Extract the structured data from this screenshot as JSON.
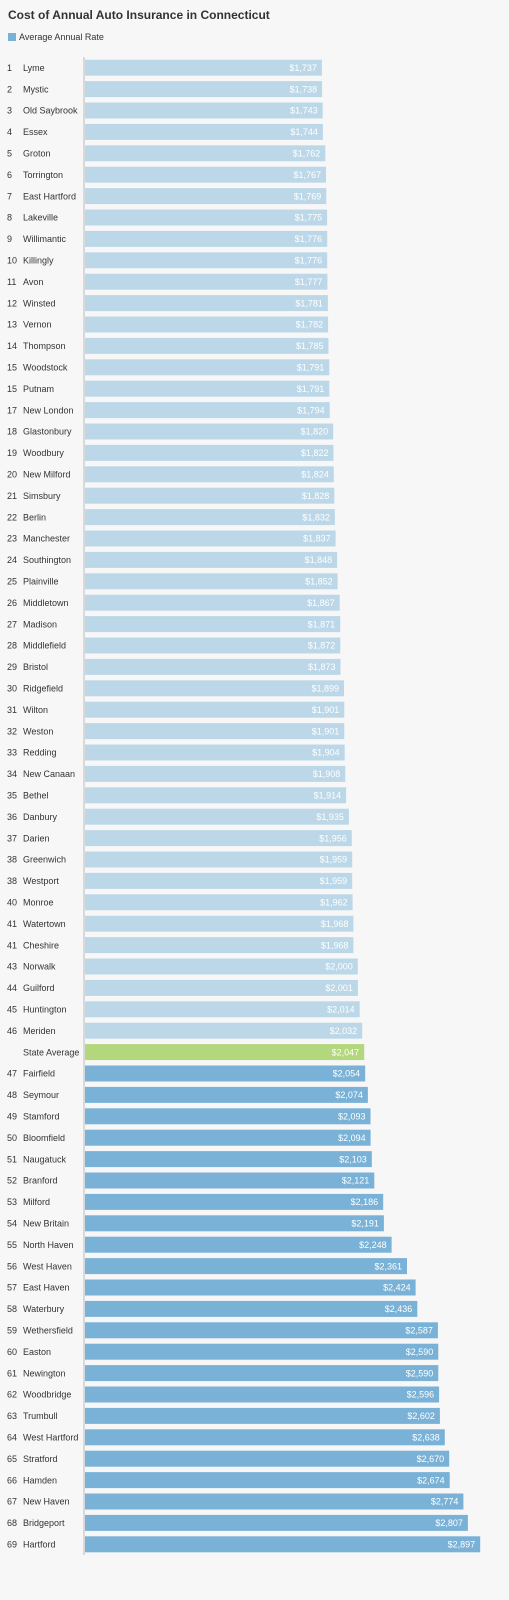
{
  "chart_data": {
    "type": "bar",
    "orientation": "horizontal",
    "title": "Cost of Annual Auto Insurance in Connecticut",
    "legend": {
      "label": "Average Annual Rate",
      "placement": "top-left"
    },
    "grid": false,
    "xlim": [
      0,
      2900
    ],
    "colors": {
      "default": "#79b2d6",
      "light": "#bcd8e8",
      "highlight": "#b2d77c",
      "label": "#ffffff"
    },
    "rows": [
      {
        "rank": "1",
        "name": "Lyme",
        "value": 1737,
        "label": "$1,737",
        "style": "light"
      },
      {
        "rank": "2",
        "name": "Mystic",
        "value": 1738,
        "label": "$1,738",
        "style": "light"
      },
      {
        "rank": "3",
        "name": "Old Saybrook",
        "value": 1743,
        "label": "$1,743",
        "style": "light"
      },
      {
        "rank": "4",
        "name": "Essex",
        "value": 1744,
        "label": "$1,744",
        "style": "light"
      },
      {
        "rank": "5",
        "name": "Groton",
        "value": 1762,
        "label": "$1,762",
        "style": "light"
      },
      {
        "rank": "6",
        "name": "Torrington",
        "value": 1767,
        "label": "$1,767",
        "style": "light"
      },
      {
        "rank": "7",
        "name": "East Hartford",
        "value": 1769,
        "label": "$1,769",
        "style": "light"
      },
      {
        "rank": "8",
        "name": "Lakeville",
        "value": 1775,
        "label": "$1,775",
        "style": "light"
      },
      {
        "rank": "9",
        "name": "Willimantic",
        "value": 1776,
        "label": "$1,776",
        "style": "light"
      },
      {
        "rank": "10",
        "name": "Killingly",
        "value": 1776,
        "label": "$1,776",
        "style": "light"
      },
      {
        "rank": "11",
        "name": "Avon",
        "value": 1777,
        "label": "$1,777",
        "style": "light"
      },
      {
        "rank": "12",
        "name": "Winsted",
        "value": 1781,
        "label": "$1,781",
        "style": "light"
      },
      {
        "rank": "13",
        "name": "Vernon",
        "value": 1782,
        "label": "$1,782",
        "style": "light"
      },
      {
        "rank": "14",
        "name": "Thompson",
        "value": 1785,
        "label": "$1,785",
        "style": "light"
      },
      {
        "rank": "15",
        "name": "Woodstock",
        "value": 1791,
        "label": "$1,791",
        "style": "light"
      },
      {
        "rank": "15",
        "name": "Putnam",
        "value": 1791,
        "label": "$1,791",
        "style": "light"
      },
      {
        "rank": "17",
        "name": "New London",
        "value": 1794,
        "label": "$1,794",
        "style": "light"
      },
      {
        "rank": "18",
        "name": "Glastonbury",
        "value": 1820,
        "label": "$1,820",
        "style": "light"
      },
      {
        "rank": "19",
        "name": "Woodbury",
        "value": 1822,
        "label": "$1,822",
        "style": "light"
      },
      {
        "rank": "20",
        "name": "New Milford",
        "value": 1824,
        "label": "$1,824",
        "style": "light"
      },
      {
        "rank": "21",
        "name": "Simsbury",
        "value": 1828,
        "label": "$1,828",
        "style": "light"
      },
      {
        "rank": "22",
        "name": "Berlin",
        "value": 1832,
        "label": "$1,832",
        "style": "light"
      },
      {
        "rank": "23",
        "name": "Manchester",
        "value": 1837,
        "label": "$1,837",
        "style": "light"
      },
      {
        "rank": "24",
        "name": "Southington",
        "value": 1848,
        "label": "$1,848",
        "style": "light"
      },
      {
        "rank": "25",
        "name": "Plainville",
        "value": 1852,
        "label": "$1,852",
        "style": "light"
      },
      {
        "rank": "26",
        "name": "Middletown",
        "value": 1867,
        "label": "$1,867",
        "style": "light"
      },
      {
        "rank": "27",
        "name": "Madison",
        "value": 1871,
        "label": "$1,871",
        "style": "light"
      },
      {
        "rank": "28",
        "name": "Middlefield",
        "value": 1872,
        "label": "$1,872",
        "style": "light"
      },
      {
        "rank": "29",
        "name": "Bristol",
        "value": 1873,
        "label": "$1,873",
        "style": "light"
      },
      {
        "rank": "30",
        "name": "Ridgefield",
        "value": 1899,
        "label": "$1,899",
        "style": "light"
      },
      {
        "rank": "31",
        "name": "Wilton",
        "value": 1901,
        "label": "$1,901",
        "style": "light"
      },
      {
        "rank": "32",
        "name": "Weston",
        "value": 1901,
        "label": "$1,901",
        "style": "light"
      },
      {
        "rank": "33",
        "name": "Redding",
        "value": 1904,
        "label": "$1,904",
        "style": "light"
      },
      {
        "rank": "34",
        "name": "New Canaan",
        "value": 1908,
        "label": "$1,908",
        "style": "light"
      },
      {
        "rank": "35",
        "name": "Bethel",
        "value": 1914,
        "label": "$1,914",
        "style": "light"
      },
      {
        "rank": "36",
        "name": "Danbury",
        "value": 1935,
        "label": "$1,935",
        "style": "light"
      },
      {
        "rank": "37",
        "name": "Darien",
        "value": 1956,
        "label": "$1,956",
        "style": "light"
      },
      {
        "rank": "38",
        "name": "Greenwich",
        "value": 1959,
        "label": "$1,959",
        "style": "light"
      },
      {
        "rank": "38",
        "name": "Westport",
        "value": 1959,
        "label": "$1,959",
        "style": "light"
      },
      {
        "rank": "40",
        "name": "Monroe",
        "value": 1962,
        "label": "$1,962",
        "style": "light"
      },
      {
        "rank": "41",
        "name": "Watertown",
        "value": 1968,
        "label": "$1,968",
        "style": "light"
      },
      {
        "rank": "41",
        "name": "Cheshire",
        "value": 1968,
        "label": "$1,968",
        "style": "light"
      },
      {
        "rank": "43",
        "name": "Norwalk",
        "value": 2000,
        "label": "$2,000",
        "style": "light"
      },
      {
        "rank": "44",
        "name": "Guilford",
        "value": 2001,
        "label": "$2,001",
        "style": "light"
      },
      {
        "rank": "45",
        "name": "Huntington",
        "value": 2014,
        "label": "$2,014",
        "style": "light"
      },
      {
        "rank": "46",
        "name": "Meriden",
        "value": 2032,
        "label": "$2,032",
        "style": "light"
      },
      {
        "rank": "",
        "name": "State Average",
        "value": 2047,
        "label": "$2,047",
        "style": "highlight"
      },
      {
        "rank": "47",
        "name": "Fairfield",
        "value": 2054,
        "label": "$2,054",
        "style": "default"
      },
      {
        "rank": "48",
        "name": "Seymour",
        "value": 2074,
        "label": "$2,074",
        "style": "default"
      },
      {
        "rank": "49",
        "name": "Stamford",
        "value": 2093,
        "label": "$2,093",
        "style": "default"
      },
      {
        "rank": "50",
        "name": "Bloomfield",
        "value": 2094,
        "label": "$2,094",
        "style": "default"
      },
      {
        "rank": "51",
        "name": "Naugatuck",
        "value": 2103,
        "label": "$2,103",
        "style": "default"
      },
      {
        "rank": "52",
        "name": "Branford",
        "value": 2121,
        "label": "$2,121",
        "style": "default"
      },
      {
        "rank": "53",
        "name": "Milford",
        "value": 2186,
        "label": "$2,186",
        "style": "default"
      },
      {
        "rank": "54",
        "name": "New Britain",
        "value": 2191,
        "label": "$2,191",
        "style": "default"
      },
      {
        "rank": "55",
        "name": "North Haven",
        "value": 2248,
        "label": "$2,248",
        "style": "default"
      },
      {
        "rank": "56",
        "name": "West Haven",
        "value": 2361,
        "label": "$2,361",
        "style": "default"
      },
      {
        "rank": "57",
        "name": "East Haven",
        "value": 2424,
        "label": "$2,424",
        "style": "default"
      },
      {
        "rank": "58",
        "name": "Waterbury",
        "value": 2436,
        "label": "$2,436",
        "style": "default"
      },
      {
        "rank": "59",
        "name": "Wethersfield",
        "value": 2587,
        "label": "$2,587",
        "style": "default"
      },
      {
        "rank": "60",
        "name": "Easton",
        "value": 2590,
        "label": "$2,590",
        "style": "default"
      },
      {
        "rank": "61",
        "name": "Newington",
        "value": 2590,
        "label": "$2,590",
        "style": "default"
      },
      {
        "rank": "62",
        "name": "Woodbridge",
        "value": 2596,
        "label": "$2,596",
        "style": "default"
      },
      {
        "rank": "63",
        "name": "Trumbull",
        "value": 2602,
        "label": "$2,602",
        "style": "default"
      },
      {
        "rank": "64",
        "name": "West Hartford",
        "value": 2638,
        "label": "$2,638",
        "style": "default"
      },
      {
        "rank": "65",
        "name": "Stratford",
        "value": 2670,
        "label": "$2,670",
        "style": "default"
      },
      {
        "rank": "66",
        "name": "Hamden",
        "value": 2674,
        "label": "$2,674",
        "style": "default"
      },
      {
        "rank": "67",
        "name": "New Haven",
        "value": 2774,
        "label": "$2,774",
        "style": "default"
      },
      {
        "rank": "68",
        "name": "Bridgeport",
        "value": 2807,
        "label": "$2,807",
        "style": "default"
      },
      {
        "rank": "69",
        "name": "Hartford",
        "value": 2897,
        "label": "$2,897",
        "style": "default"
      }
    ]
  }
}
